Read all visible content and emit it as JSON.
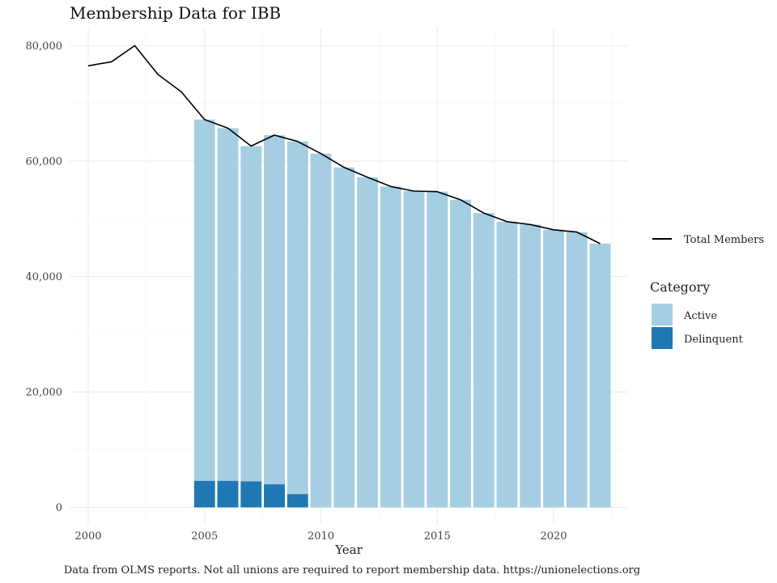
{
  "chart_data": {
    "type": "bar",
    "title": "Membership Data for IBB",
    "xlabel": "Year",
    "ylabel": "",
    "caption": "Data from OLMS reports. Not all unions are required to report membership data. https://unionelections.org",
    "xlim": [
      1999.2,
      2023.2
    ],
    "ylim": [
      -3000,
      83000
    ],
    "x_ticks": [
      2000,
      2005,
      2010,
      2015,
      2020
    ],
    "x_tick_labels": [
      "2000",
      "2005",
      "2010",
      "2015",
      "2020"
    ],
    "y_ticks": [
      0,
      20000,
      40000,
      60000,
      80000
    ],
    "y_tick_labels": [
      "0",
      "20,000",
      "40,000",
      "60,000",
      "80,000"
    ],
    "grid": true,
    "legend_position": "right",
    "legend_title": "Category",
    "line_series": {
      "name": "Total Members",
      "color": "#000000",
      "x": [
        2000,
        2001,
        2002,
        2003,
        2004,
        2005,
        2006,
        2007,
        2008,
        2009,
        2010,
        2011,
        2012,
        2013,
        2014,
        2015,
        2016,
        2017,
        2018,
        2019,
        2020,
        2021,
        2022
      ],
      "y": [
        76500,
        77200,
        80000,
        75000,
        72000,
        67200,
        65700,
        62600,
        64500,
        63400,
        61300,
        58900,
        57200,
        55600,
        54800,
        54700,
        53300,
        51000,
        49500,
        49000,
        48100,
        47700,
        45700
      ]
    },
    "stack_series": [
      {
        "name": "Active",
        "color": "#a6cee3",
        "x": [
          2005,
          2006,
          2007,
          2008,
          2009,
          2010,
          2011,
          2012,
          2013,
          2014,
          2015,
          2016,
          2017,
          2018,
          2019,
          2020,
          2021,
          2022
        ],
        "values": [
          62600,
          61100,
          58100,
          60500,
          61100,
          61300,
          58900,
          57200,
          55600,
          54800,
          54700,
          53300,
          51000,
          49500,
          49000,
          48100,
          47700,
          45700
        ]
      },
      {
        "name": "Delinquent",
        "color": "#1f78b4",
        "x": [
          2005,
          2006,
          2007,
          2008,
          2009,
          2010,
          2011,
          2012,
          2013,
          2014,
          2015,
          2016,
          2017,
          2018,
          2019,
          2020,
          2021,
          2022
        ],
        "values": [
          4600,
          4600,
          4500,
          4000,
          2300,
          0,
          0,
          0,
          0,
          0,
          0,
          0,
          0,
          0,
          0,
          0,
          0,
          0
        ]
      }
    ]
  }
}
